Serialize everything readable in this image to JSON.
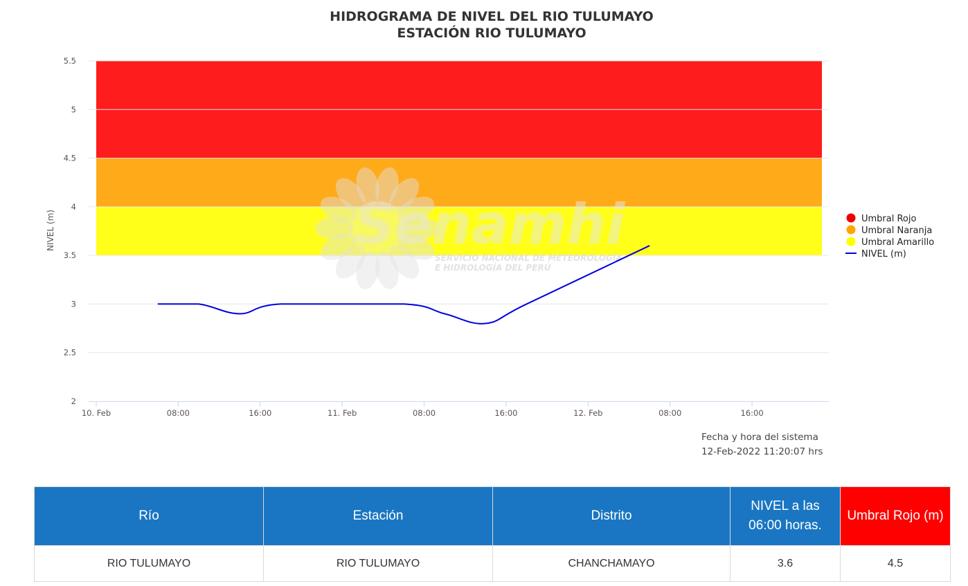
{
  "chart_data": {
    "type": "line",
    "title": "HIDROGRAMA DE NIVEL DEL RIO TULUMAYO",
    "subtitle": "ESTACIÓN RIO TULUMAYO",
    "ylabel": "NIVEL (m)",
    "xlabel": "",
    "ylim": [
      2,
      5.5
    ],
    "xlim": [
      "2022-02-10 00:00",
      "2022-02-12 24:00"
    ],
    "y_ticks": [
      "2",
      "2.5",
      "3",
      "3.5",
      "4",
      "4.5",
      "5",
      "5.5"
    ],
    "x_ticks": [
      {
        "t": "2022-02-10 00:00",
        "label": "10. Feb"
      },
      {
        "t": "2022-02-10 08:00",
        "label": "08:00"
      },
      {
        "t": "2022-02-10 16:00",
        "label": "16:00"
      },
      {
        "t": "2022-02-11 00:00",
        "label": "11. Feb"
      },
      {
        "t": "2022-02-11 08:00",
        "label": "08:00"
      },
      {
        "t": "2022-02-11 16:00",
        "label": "16:00"
      },
      {
        "t": "2022-02-12 00:00",
        "label": "12. Feb"
      },
      {
        "t": "2022-02-12 08:00",
        "label": "08:00"
      },
      {
        "t": "2022-02-12 16:00",
        "label": "16:00"
      }
    ],
    "bands": [
      {
        "name": "Umbral Rojo",
        "from": 4.5,
        "to": 5.5,
        "color": "#ff1c1c"
      },
      {
        "name": "Umbral Naranja",
        "from": 4.0,
        "to": 4.5,
        "color": "#ffaa19"
      },
      {
        "name": "Umbral Amarillo",
        "from": 3.5,
        "to": 4.0,
        "color": "#ffff19"
      }
    ],
    "series": [
      {
        "name": "NIVEL (m)",
        "color": "#0000e0",
        "points": [
          {
            "x": "2022-02-10 06:00",
            "y": 3.0
          },
          {
            "x": "2022-02-10 10:00",
            "y": 3.0
          },
          {
            "x": "2022-02-10 14:00",
            "y": 2.9
          },
          {
            "x": "2022-02-10 18:00",
            "y": 3.0
          },
          {
            "x": "2022-02-11 06:00",
            "y": 3.0
          },
          {
            "x": "2022-02-11 10:00",
            "y": 2.9
          },
          {
            "x": "2022-02-11 14:00",
            "y": 2.8
          },
          {
            "x": "2022-02-11 18:00",
            "y": 3.0
          },
          {
            "x": "2022-02-12 06:00",
            "y": 3.6
          }
        ]
      }
    ],
    "legend_position": "right",
    "grid": true
  },
  "watermark": {
    "brand": "Senamhi",
    "line1": "SERVICIO NACIONAL DE METEOROLOGÍA",
    "line2": "E HIDROLOGÍA DEL PERÚ"
  },
  "system_time": {
    "label": "Fecha y hora del sistema",
    "value": "12-Feb-2022 11:20:07 hrs"
  },
  "table": {
    "headers": [
      "Río",
      "Estación",
      "Distrito",
      "NIVEL a las 06:00 horas.",
      "Umbral Rojo (m)"
    ],
    "row": [
      "RIO TULUMAYO",
      "RIO TULUMAYO",
      "CHANCHAMAYO",
      "3.6",
      "4.5"
    ]
  }
}
